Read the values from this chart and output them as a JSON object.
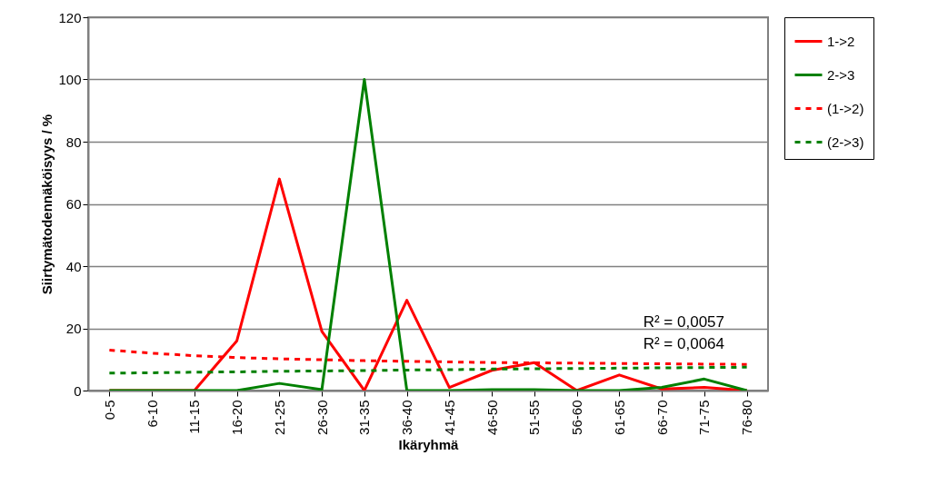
{
  "chart_data": {
    "type": "line",
    "xlabel": "Ikäryhmä",
    "ylabel": "Siirtymätodennäköisyys / %",
    "categories": [
      "0-5",
      "6-10",
      "11-15",
      "16-20",
      "21-25",
      "26-30",
      "31-35",
      "36-40",
      "41-45",
      "46-50",
      "51-55",
      "56-60",
      "61-65",
      "66-70",
      "71-75",
      "76-80"
    ],
    "series": [
      {
        "name": "1->2",
        "color": "#ff0000",
        "line_style": "solid",
        "values": [
          0,
          0,
          0,
          16,
          68,
          19,
          0,
          29,
          1,
          6.5,
          9,
          0,
          5,
          0.5,
          1,
          0
        ]
      },
      {
        "name": "2->3",
        "color": "#008000",
        "line_style": "solid",
        "values": [
          0,
          0,
          0,
          0,
          2.3,
          0.3,
          100,
          0,
          0,
          0.3,
          0.3,
          0,
          0,
          1,
          3.7,
          0
        ]
      },
      {
        "name": "(1->2)",
        "color": "#ff0000",
        "line_style": "dashed",
        "values": [
          13,
          12,
          11.2,
          10.6,
          10.2,
          9.9,
          9.6,
          9.4,
          9.2,
          9,
          8.9,
          8.8,
          8.7,
          8.6,
          8.5,
          8.4
        ]
      },
      {
        "name": "(2->3)",
        "color": "#008000",
        "line_style": "dashed",
        "values": [
          5.6,
          5.7,
          5.9,
          6,
          6.2,
          6.3,
          6.4,
          6.6,
          6.7,
          6.9,
          7,
          7.1,
          7.2,
          7.3,
          7.4,
          7.5
        ]
      }
    ],
    "annotations": [
      "R² = 0,0057",
      "R² = 0,0064"
    ],
    "ylim": [
      0,
      120
    ],
    "yticks": [
      0,
      20,
      40,
      60,
      80,
      100,
      120
    ],
    "grid": "y",
    "legend": "right"
  }
}
